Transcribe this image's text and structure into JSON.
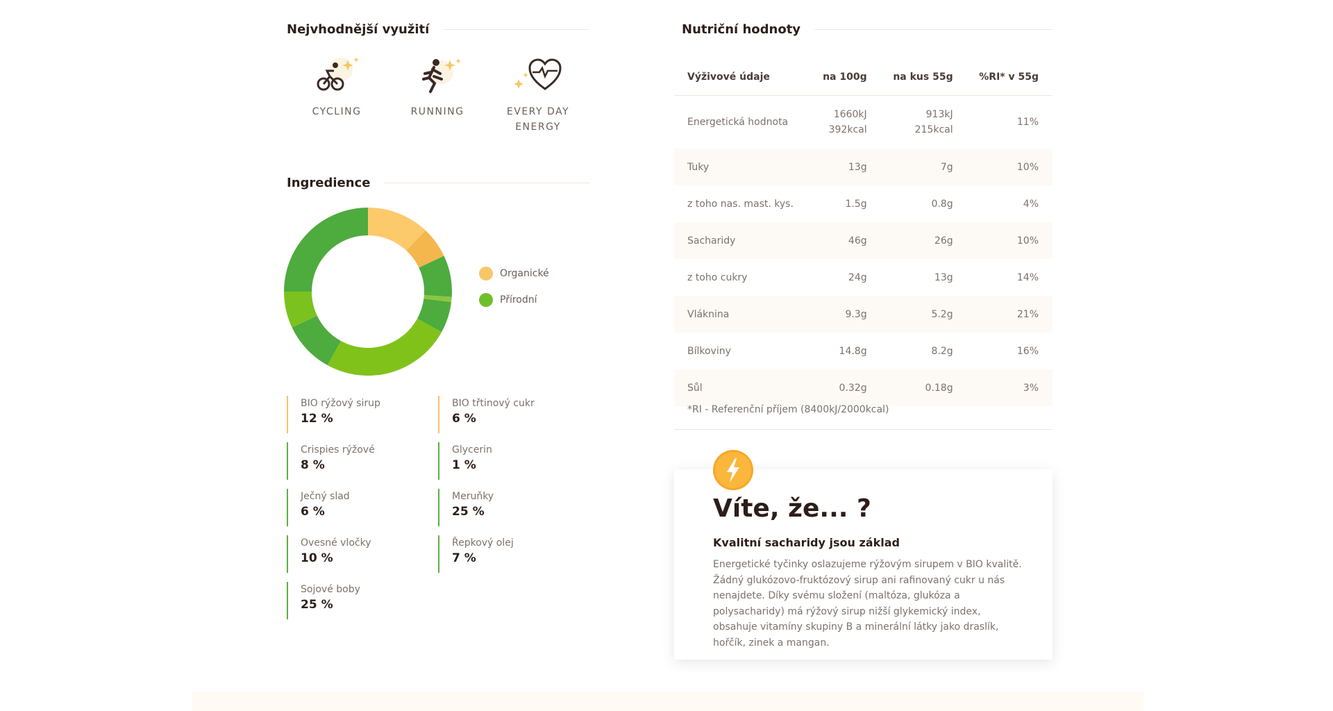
{
  "usage": {
    "title": "Nejvhodnější využití",
    "items": [
      {
        "label": "CYCLING",
        "icon": "cycling-icon"
      },
      {
        "label": "RUNNING",
        "icon": "running-icon"
      },
      {
        "label": "EVERY DAY ENERGY",
        "icon": "heart-icon"
      }
    ]
  },
  "ingredients": {
    "title": "Ingredience",
    "legend": [
      {
        "label": "Organické",
        "color": "#f7c767"
      },
      {
        "label": "Přírodní",
        "color": "#6fbf2a"
      }
    ],
    "items": [
      {
        "name": "BIO rýžový sirup",
        "pct": "12 %",
        "type": "organic"
      },
      {
        "name": "BIO třtinový cukr",
        "pct": "6 %",
        "type": "organic"
      },
      {
        "name": "Crispies rýžové",
        "pct": "8 %",
        "type": "natural"
      },
      {
        "name": "Glycerin",
        "pct": "1 %",
        "type": "natural"
      },
      {
        "name": "Ječný slad",
        "pct": "6 %",
        "type": "natural"
      },
      {
        "name": "Meruňky",
        "pct": "25 %",
        "type": "natural"
      },
      {
        "name": "Ovesné vločky",
        "pct": "10 %",
        "type": "natural"
      },
      {
        "name": "Řepkový olej",
        "pct": "7 %",
        "type": "natural"
      },
      {
        "name": "Sojové boby",
        "pct": "25 %",
        "type": "natural"
      }
    ]
  },
  "chart_data": {
    "type": "pie",
    "categories": [
      "BIO rýžový sirup",
      "BIO třtinový cukr",
      "Crispies rýžové",
      "Glycerin",
      "Ječný slad",
      "Meruňky",
      "Ovesné vločky",
      "Řepkový olej",
      "Sojové boby"
    ],
    "values": [
      12,
      6,
      8,
      1,
      6,
      25,
      10,
      7,
      25
    ],
    "colors": [
      "#fcc96b",
      "#f3b74d",
      "#4eab3e",
      "#8cc63f",
      "#4eab3e",
      "#81c21a",
      "#4eab3e",
      "#7cc21e",
      "#4eab3e"
    ],
    "donut": true
  },
  "nutrition": {
    "title": "Nutriční hodnoty",
    "headers": [
      "Výživové údaje",
      "na 100g",
      "na kus 55g",
      "%RI* v 55g"
    ],
    "rows": [
      [
        "Energetická hodnota",
        "1660kJ\n392kcal",
        "913kJ\n215kcal",
        "11%"
      ],
      [
        "Tuky",
        "13g",
        "7g",
        "10%"
      ],
      [
        "z toho nas. mast. kys.",
        "1.5g",
        "0.8g",
        "4%"
      ],
      [
        "Sacharidy",
        "46g",
        "26g",
        "10%"
      ],
      [
        "z toho cukry",
        "24g",
        "13g",
        "14%"
      ],
      [
        "Vláknina",
        "9.3g",
        "5.2g",
        "21%"
      ],
      [
        "Bílkoviny",
        "14.8g",
        "8.2g",
        "16%"
      ],
      [
        "Sůl",
        "0.32g",
        "0.18g",
        "3%"
      ]
    ],
    "note": "*RI - Referenční příjem (8400kJ/2000kcal)"
  },
  "fact": {
    "icon": "lightning-icon",
    "title": "Víte, že... ?",
    "subtitle": "Kvalitní sacharidy jsou základ",
    "text": "Energetické tyčinky oslazujeme rýžovým sirupem v BIO kvalitě. Žádný glukózovo-fruktózový sirup ani rafinovaný cukr u nás nenajdete. Díky svému složení (maltóza, glukóza a polysacharidy) má rýžový sirup nižší glykemický index, obsahuje vitamíny skupiny B a minerální látky jako draslík, hořčík, zinek a mangan."
  }
}
